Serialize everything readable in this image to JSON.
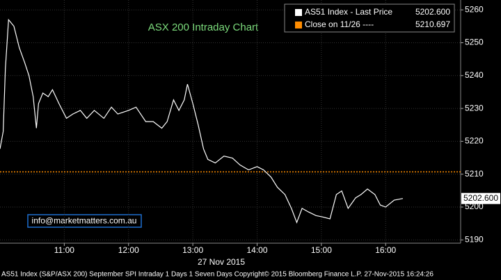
{
  "chart_data": {
    "type": "line",
    "title": "ASX 200 Intraday Chart",
    "x_label": "27 Nov 2015",
    "contact": "info@marketmatters.com.au",
    "footer": "AS51 Index (S&P/ASX 200) September SPI Intraday 1 Days 1 Seven Days Copyright© 2015 Bloomberg Finance L.P. 27-Nov-2015 16:24:26",
    "x": [
      "10:00",
      "10:03",
      "10:05",
      "10:08",
      "10:13",
      "10:18",
      "10:23",
      "10:27",
      "10:31",
      "10:34",
      "10:36",
      "10:40",
      "10:45",
      "10:49",
      "10:55",
      "11:02",
      "11:08",
      "11:15",
      "11:21",
      "11:28",
      "11:37",
      "11:44",
      "11:50",
      "12:00",
      "12:07",
      "12:16",
      "12:23",
      "12:31",
      "12:36",
      "12:42",
      "12:47",
      "12:52",
      "12:55",
      "13:00",
      "13:05",
      "13:10",
      "13:14",
      "13:21",
      "13:29",
      "13:37",
      "13:44",
      "13:52",
      "14:00",
      "14:06",
      "14:13",
      "14:19",
      "14:26",
      "14:32",
      "14:37",
      "14:42",
      "14:48",
      "14:55",
      "15:01",
      "15:08",
      "15:14",
      "15:19",
      "15:25",
      "15:32",
      "15:37",
      "15:43",
      "15:50",
      "15:55",
      "16:00",
      "16:08",
      "16:16"
    ],
    "series": [
      {
        "name": "AS51 Index - Last Price",
        "color": "#ffffff",
        "values": [
          5217.7,
          5223,
          5242,
          5257,
          5255,
          5248.5,
          5244,
          5240,
          5233.6,
          5224,
          5231.5,
          5234.7,
          5233.6,
          5235.7,
          5231.5,
          5227,
          5228.3,
          5229.4,
          5227,
          5229.4,
          5227,
          5230.4,
          5228.3,
          5229.4,
          5230.4,
          5226,
          5226,
          5224,
          5226,
          5232.6,
          5229.4,
          5232.6,
          5237.4,
          5231.5,
          5225,
          5217.7,
          5214.5,
          5213.4,
          5215.5,
          5214.9,
          5212.8,
          5211.3,
          5212.3,
          5211.3,
          5209.1,
          5206,
          5203.8,
          5199.6,
          5195.3,
          5199.6,
          5198.5,
          5197.4,
          5197,
          5196.4,
          5203.8,
          5204.9,
          5199.6,
          5202.8,
          5203.8,
          5205.5,
          5203.8,
          5200.6,
          5200,
          5202.1,
          5202.6
        ]
      }
    ],
    "last_price": {
      "value": 5202.6,
      "label": "5202.600"
    },
    "reference_lines": [
      {
        "name": "Close on 11/26 ----",
        "value": 5210.697,
        "color": "#ff8c00"
      }
    ],
    "xlim": [
      "10:00",
      "17:10"
    ],
    "xticks": [
      "11:00",
      "12:00",
      "13:00",
      "14:00",
      "15:00",
      "16:00"
    ],
    "ylim": [
      5189,
      5263
    ],
    "yticks": [
      5190,
      5200,
      5210,
      5220,
      5230,
      5240,
      5250,
      5260
    ],
    "grid": true,
    "legend": "top-right"
  }
}
